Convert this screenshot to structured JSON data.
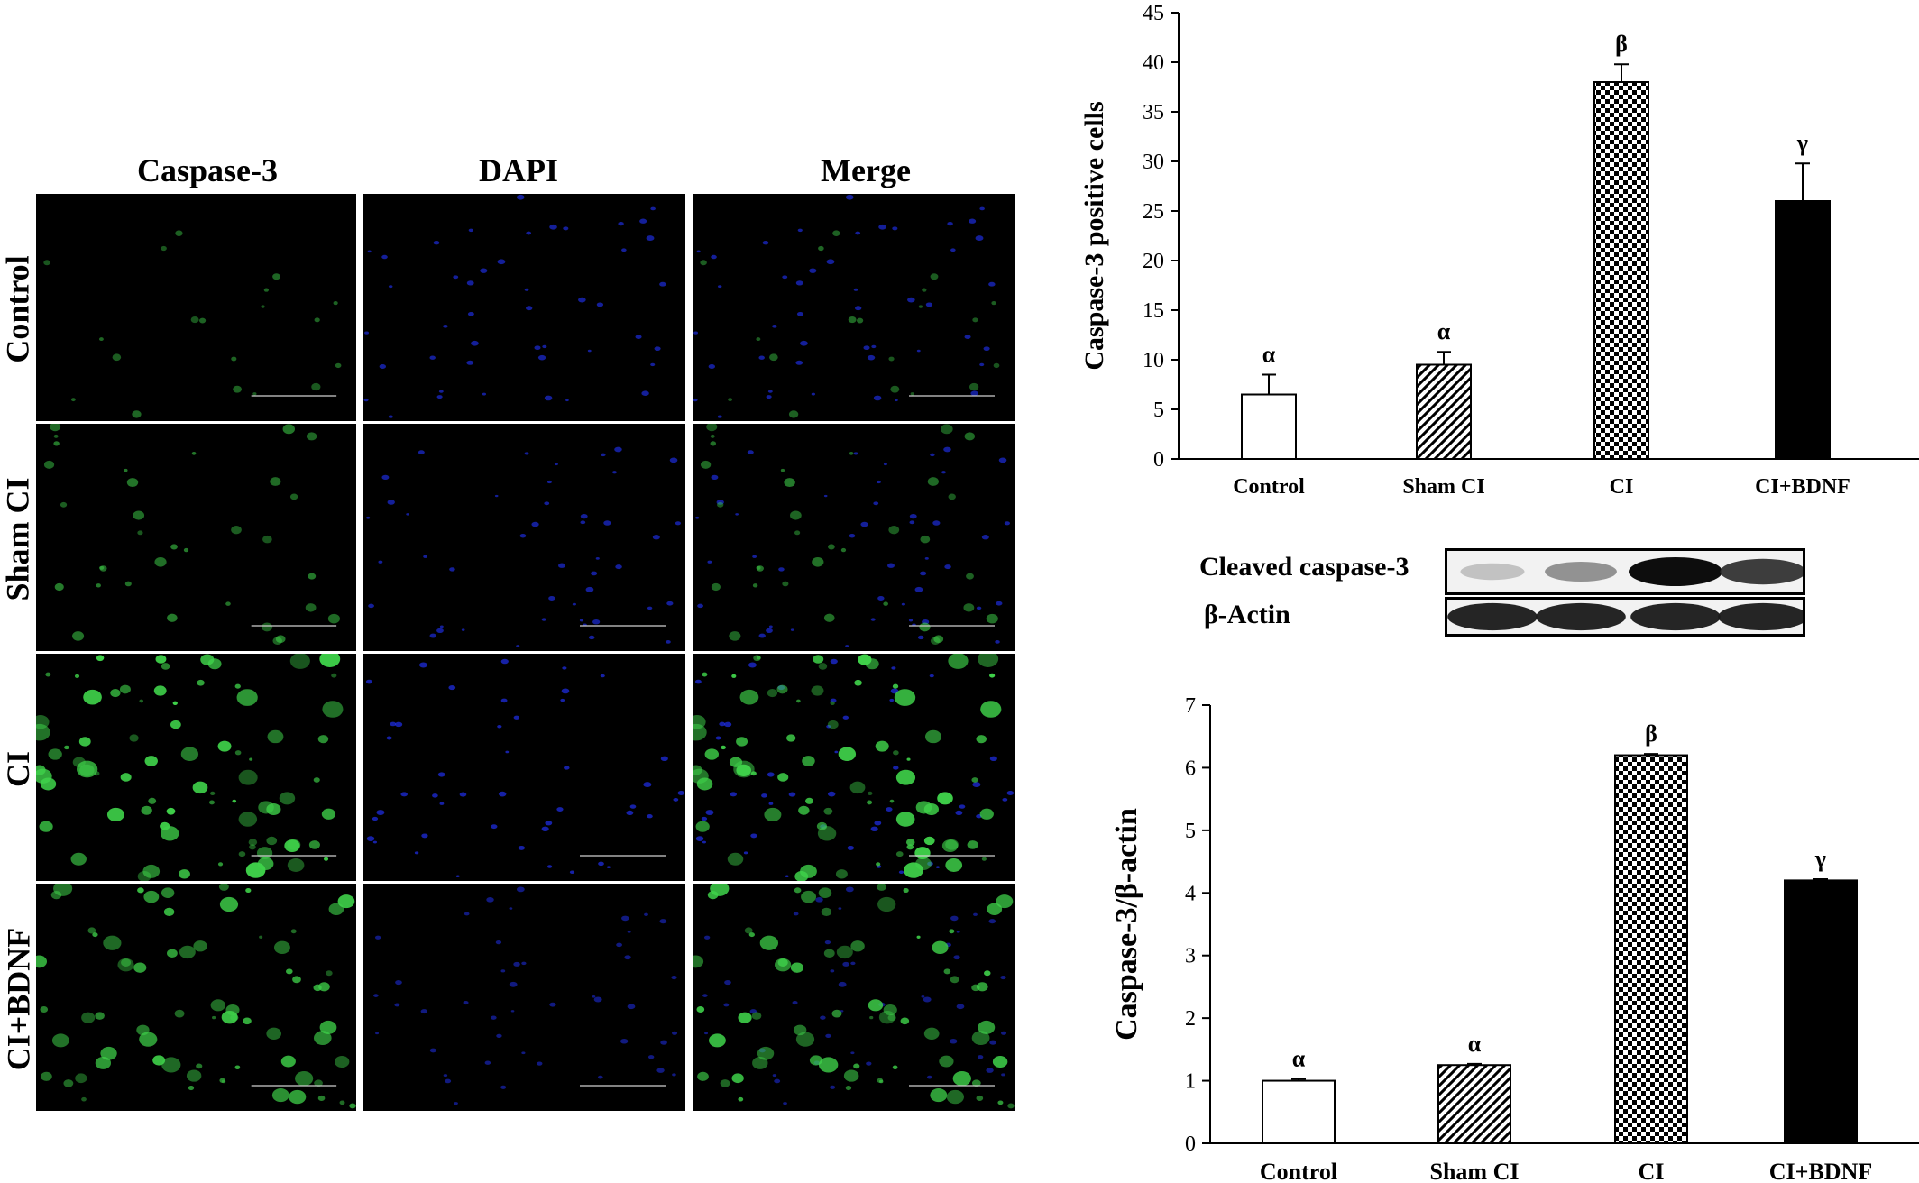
{
  "micrographs": {
    "columns": [
      "Caspase-3",
      "DAPI",
      "Merge"
    ],
    "rows": [
      "Control",
      "Sham CI",
      "CI",
      "CI+BDNF"
    ],
    "green_intensity": [
      0.15,
      0.35,
      1.0,
      0.85
    ],
    "blue_intensity": [
      0.6,
      0.6,
      0.65,
      0.5
    ],
    "colors": {
      "green": "#3fd24a",
      "blue": "#2233ff",
      "background": "#000000"
    }
  },
  "western_blot": {
    "labels": [
      "Cleaved caspase-3",
      "β-Actin"
    ],
    "band_intensity": {
      "cleaved_caspase3": [
        0.25,
        0.45,
        1.0,
        0.8
      ],
      "beta_actin": [
        0.9,
        0.9,
        0.9,
        0.9
      ]
    }
  },
  "chart_data": [
    {
      "type": "bar",
      "categories": [
        "Control",
        "Sham CI",
        "CI",
        "CI+BDNF"
      ],
      "values": [
        6.5,
        9.5,
        38,
        26
      ],
      "errors": [
        2,
        1.3,
        1.8,
        3.8
      ],
      "significance": [
        "α",
        "α",
        "β",
        "γ"
      ],
      "patterns": [
        "white",
        "diagonal",
        "checker",
        "black"
      ],
      "title": "",
      "xlabel": "",
      "ylabel": "Caspase-3  positive cells",
      "ylim": [
        0,
        45
      ],
      "yticks": [
        "0",
        "5",
        "10",
        "15",
        "20",
        "25",
        "30",
        "35",
        "40",
        "45"
      ],
      "grid": false
    },
    {
      "type": "bar",
      "categories": [
        "Control",
        "Sham CI",
        "CI",
        "CI+BDNF"
      ],
      "values": [
        1.0,
        1.25,
        6.2,
        4.2
      ],
      "errors": [
        0.03,
        0.02,
        0.02,
        0.02
      ],
      "significance": [
        "α",
        "α",
        "β",
        "γ"
      ],
      "patterns": [
        "white",
        "diagonal",
        "checker",
        "black"
      ],
      "title": "",
      "xlabel": "",
      "ylabel": "Caspase-3/β-actin",
      "ylim": [
        0,
        7
      ],
      "yticks": [
        "0",
        "1",
        "2",
        "3",
        "4",
        "5",
        "6",
        "7"
      ],
      "grid": false
    }
  ]
}
